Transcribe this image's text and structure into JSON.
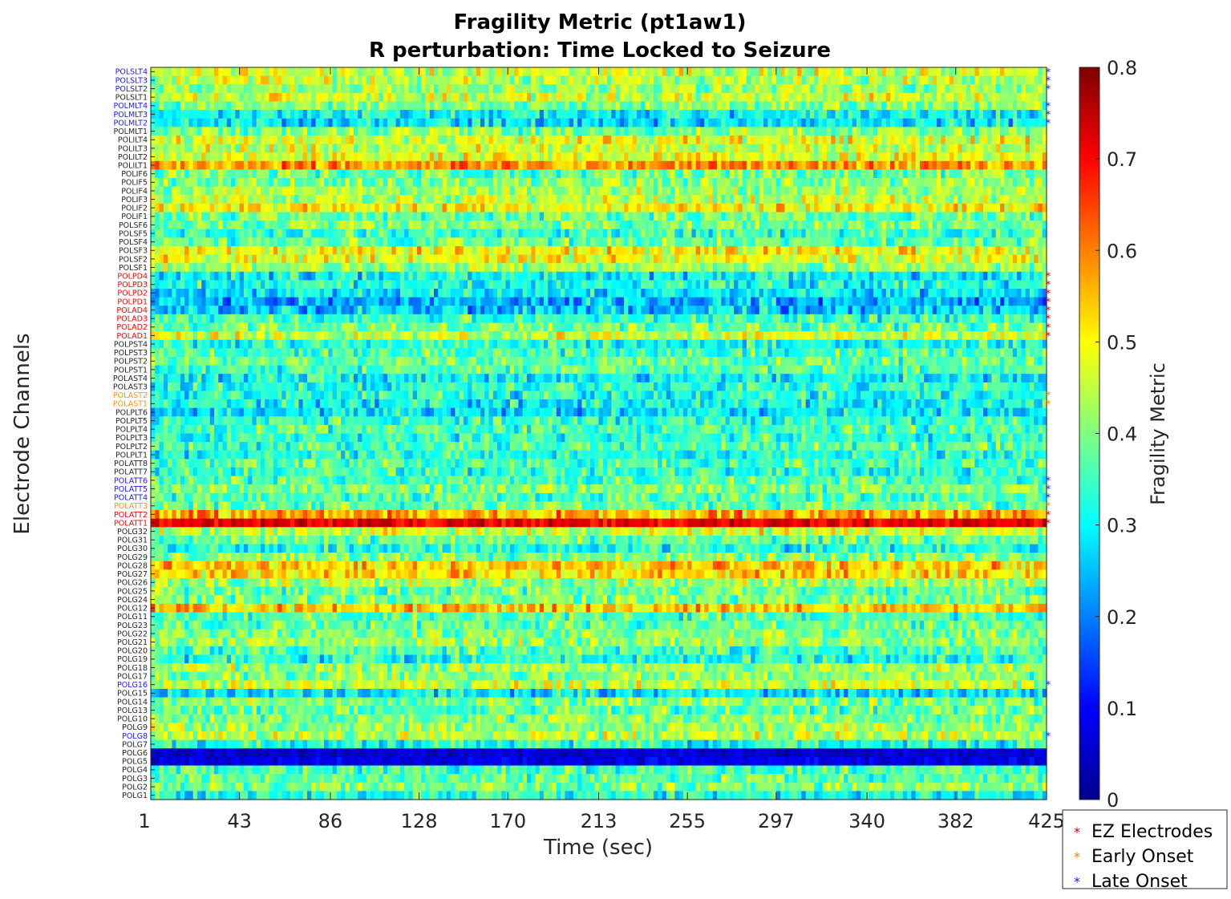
{
  "chart_data": {
    "type": "heatmap",
    "title": "Fragility Metric (pt1aw1)",
    "subtitle": "R perturbation:  Time Locked to Seizure",
    "xlabel": "Time (sec)",
    "ylabel": "Electrode Channels",
    "colorbar_label": "Fragility Metric",
    "colormap": "jet",
    "x_range": [
      1,
      425
    ],
    "x_ticks": [
      "1",
      "43",
      "86",
      "128",
      "170",
      "213",
      "255",
      "297",
      "340",
      "382",
      "425"
    ],
    "colorbar_range": [
      0,
      0.8
    ],
    "colorbar_ticks": [
      "0",
      "0.1",
      "0.2",
      "0.3",
      "0.4",
      "0.5",
      "0.6",
      "0.7",
      "0.8"
    ],
    "channels": [
      {
        "name": "POLSLT4",
        "group": "late",
        "mean": 0.46
      },
      {
        "name": "POLSLT3",
        "group": "late",
        "mean": 0.44
      },
      {
        "name": "POLSLT2",
        "group": "late",
        "mean": 0.42
      },
      {
        "name": "POLSLT1",
        "group": "none",
        "mean": 0.46
      },
      {
        "name": "POLMLT4",
        "group": "late",
        "mean": 0.4
      },
      {
        "name": "POLMLT3",
        "group": "late",
        "mean": 0.3
      },
      {
        "name": "POLMLT2",
        "group": "late",
        "mean": 0.28
      },
      {
        "name": "POLMLT1",
        "group": "none",
        "mean": 0.4
      },
      {
        "name": "POLILT4",
        "group": "none",
        "mean": 0.48
      },
      {
        "name": "POLILT3",
        "group": "none",
        "mean": 0.46
      },
      {
        "name": "POLILT2",
        "group": "none",
        "mean": 0.48
      },
      {
        "name": "POLILT1",
        "group": "none",
        "mean": 0.58
      },
      {
        "name": "POLIF6",
        "group": "none",
        "mean": 0.38
      },
      {
        "name": "POLIF5",
        "group": "none",
        "mean": 0.4
      },
      {
        "name": "POLIF4",
        "group": "none",
        "mean": 0.42
      },
      {
        "name": "POLIF3",
        "group": "none",
        "mean": 0.44
      },
      {
        "name": "POLIF2",
        "group": "none",
        "mean": 0.5
      },
      {
        "name": "POLIF1",
        "group": "none",
        "mean": 0.38
      },
      {
        "name": "POLSF6",
        "group": "none",
        "mean": 0.4
      },
      {
        "name": "POLSF5",
        "group": "none",
        "mean": 0.34
      },
      {
        "name": "POLSF4",
        "group": "none",
        "mean": 0.38
      },
      {
        "name": "POLSF3",
        "group": "none",
        "mean": 0.5
      },
      {
        "name": "POLSF2",
        "group": "none",
        "mean": 0.48
      },
      {
        "name": "POLSF1",
        "group": "none",
        "mean": 0.42
      },
      {
        "name": "POLPD4",
        "group": "ez",
        "mean": 0.3
      },
      {
        "name": "POLPD3",
        "group": "ez",
        "mean": 0.32
      },
      {
        "name": "POLPD2",
        "group": "ez",
        "mean": 0.28
      },
      {
        "name": "POLPD1",
        "group": "ez",
        "mean": 0.24
      },
      {
        "name": "POLAD4",
        "group": "ez",
        "mean": 0.26
      },
      {
        "name": "POLAD3",
        "group": "ez",
        "mean": 0.34
      },
      {
        "name": "POLAD2",
        "group": "ez",
        "mean": 0.38
      },
      {
        "name": "POLAD1",
        "group": "ez",
        "mean": 0.46
      },
      {
        "name": "POLPST4",
        "group": "none",
        "mean": 0.32
      },
      {
        "name": "POLPST3",
        "group": "none",
        "mean": 0.36
      },
      {
        "name": "POLPST2",
        "group": "none",
        "mean": 0.38
      },
      {
        "name": "POLPST1",
        "group": "none",
        "mean": 0.36
      },
      {
        "name": "POLAST4",
        "group": "none",
        "mean": 0.3
      },
      {
        "name": "POLAST3",
        "group": "none",
        "mean": 0.34
      },
      {
        "name": "POLAST2",
        "group": "early",
        "mean": 0.32
      },
      {
        "name": "POLAST1",
        "group": "early",
        "mean": 0.3
      },
      {
        "name": "POLPLT6",
        "group": "none",
        "mean": 0.28
      },
      {
        "name": "POLPLT5",
        "group": "none",
        "mean": 0.34
      },
      {
        "name": "POLPLT4",
        "group": "none",
        "mean": 0.36
      },
      {
        "name": "POLPLT3",
        "group": "none",
        "mean": 0.34
      },
      {
        "name": "POLPLT2",
        "group": "none",
        "mean": 0.36
      },
      {
        "name": "POLPLT1",
        "group": "none",
        "mean": 0.32
      },
      {
        "name": "POLATT8",
        "group": "none",
        "mean": 0.36
      },
      {
        "name": "POLATT7",
        "group": "none",
        "mean": 0.34
      },
      {
        "name": "POLATT6",
        "group": "late",
        "mean": 0.36
      },
      {
        "name": "POLATT5",
        "group": "late",
        "mean": 0.4
      },
      {
        "name": "POLATT4",
        "group": "late",
        "mean": 0.36
      },
      {
        "name": "POLATT3",
        "group": "early",
        "mean": 0.38
      },
      {
        "name": "POLATT2",
        "group": "ez",
        "mean": 0.56
      },
      {
        "name": "POLATT1",
        "group": "ez",
        "mean": 0.72
      },
      {
        "name": "POLG32",
        "group": "none",
        "mean": 0.46
      },
      {
        "name": "POLG31",
        "group": "none",
        "mean": 0.38
      },
      {
        "name": "POLG30",
        "group": "none",
        "mean": 0.32
      },
      {
        "name": "POLG29",
        "group": "none",
        "mean": 0.4
      },
      {
        "name": "POLG28",
        "group": "none",
        "mean": 0.54
      },
      {
        "name": "POLG27",
        "group": "none",
        "mean": 0.52
      },
      {
        "name": "POLG26",
        "group": "none",
        "mean": 0.42
      },
      {
        "name": "POLG25",
        "group": "none",
        "mean": 0.38
      },
      {
        "name": "POLG24",
        "group": "none",
        "mean": 0.4
      },
      {
        "name": "POLG12",
        "group": "none",
        "mean": 0.54
      },
      {
        "name": "POLG11",
        "group": "none",
        "mean": 0.36
      },
      {
        "name": "POLG23",
        "group": "none",
        "mean": 0.38
      },
      {
        "name": "POLG22",
        "group": "none",
        "mean": 0.4
      },
      {
        "name": "POLG21",
        "group": "none",
        "mean": 0.42
      },
      {
        "name": "POLG20",
        "group": "none",
        "mean": 0.36
      },
      {
        "name": "POLG19",
        "group": "none",
        "mean": 0.32
      },
      {
        "name": "POLG18",
        "group": "none",
        "mean": 0.42
      },
      {
        "name": "POLG17",
        "group": "none",
        "mean": 0.4
      },
      {
        "name": "POLG16",
        "group": "late",
        "mean": 0.46
      },
      {
        "name": "POLG15",
        "group": "none",
        "mean": 0.28
      },
      {
        "name": "POLG14",
        "group": "none",
        "mean": 0.4
      },
      {
        "name": "POLG13",
        "group": "none",
        "mean": 0.38
      },
      {
        "name": "POLG10",
        "group": "none",
        "mean": 0.4
      },
      {
        "name": "POLG9",
        "group": "none",
        "mean": 0.42
      },
      {
        "name": "POLG8",
        "group": "late",
        "mean": 0.44
      },
      {
        "name": "POLG7",
        "group": "none",
        "mean": 0.32
      },
      {
        "name": "POLG6",
        "group": "none",
        "mean": 0.06
      },
      {
        "name": "POLG5",
        "group": "none",
        "mean": 0.08
      },
      {
        "name": "POLG4",
        "group": "none",
        "mean": 0.36
      },
      {
        "name": "POLG3",
        "group": "none",
        "mean": 0.38
      },
      {
        "name": "POLG2",
        "group": "none",
        "mean": 0.4
      },
      {
        "name": "POLG1",
        "group": "none",
        "mean": 0.32
      }
    ],
    "legend": {
      "placement": "bottom-right, outside",
      "entries": [
        {
          "label": "EZ Electrodes",
          "group": "ez",
          "color": "#d40000"
        },
        {
          "label": "Early Onset",
          "group": "early",
          "color": "#ff8000"
        },
        {
          "label": "Late Onset",
          "group": "late",
          "color": "#1a1aff"
        }
      ]
    },
    "label_colors": {
      "none": "#262626",
      "ez": "#ff0000",
      "early": "#ff9900",
      "late": "#1a1aff"
    }
  }
}
